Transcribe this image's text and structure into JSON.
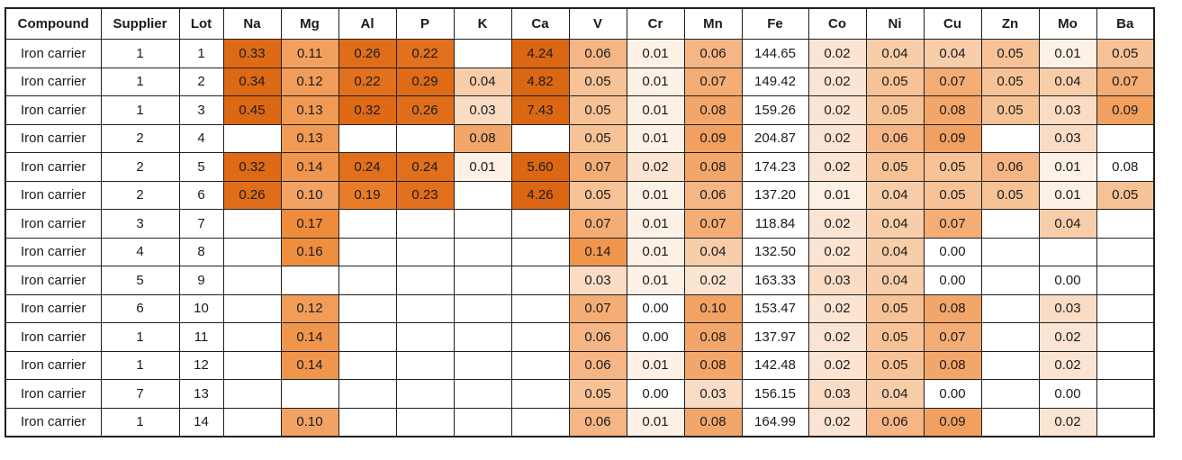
{
  "chart_data": {
    "type": "table",
    "title": "",
    "description": "Elemental composition heatmap table of iron carrier lots; cell shading encodes element concentration from white (low) to dark orange (high); Compound, Supplier, Lot and Fe columns are unshaded.",
    "columns": [
      "Compound",
      "Supplier",
      "Lot",
      "Na",
      "Mg",
      "Al",
      "P",
      "K",
      "Ca",
      "V",
      "Cr",
      "Mn",
      "Fe",
      "Co",
      "Ni",
      "Cu",
      "Zn",
      "Mo",
      "Ba"
    ],
    "rows": [
      [
        "Iron carrier",
        "1",
        "1",
        "0.33",
        "0.11",
        "0.26",
        "0.22",
        "",
        "4.24",
        "0.06",
        "0.01",
        "0.06",
        "144.65",
        "0.02",
        "0.04",
        "0.04",
        "0.05",
        "0.01",
        "0.05"
      ],
      [
        "Iron carrier",
        "1",
        "2",
        "0.34",
        "0.12",
        "0.22",
        "0.29",
        "0.04",
        "4.82",
        "0.05",
        "0.01",
        "0.07",
        "149.42",
        "0.02",
        "0.05",
        "0.07",
        "0.05",
        "0.04",
        "0.07"
      ],
      [
        "Iron carrier",
        "1",
        "3",
        "0.45",
        "0.13",
        "0.32",
        "0.26",
        "0.03",
        "7.43",
        "0.05",
        "0.01",
        "0.08",
        "159.26",
        "0.02",
        "0.05",
        "0.08",
        "0.05",
        "0.03",
        "0.09"
      ],
      [
        "Iron carrier",
        "2",
        "4",
        "",
        "0.13",
        "",
        "",
        "0.08",
        "",
        "0.05",
        "0.01",
        "0.09",
        "204.87",
        "0.02",
        "0.06",
        "0.09",
        "",
        "0.03",
        ""
      ],
      [
        "Iron carrier",
        "2",
        "5",
        "0.32",
        "0.14",
        "0.24",
        "0.24",
        "0.01",
        "5.60",
        "0.07",
        "0.02",
        "0.08",
        "174.23",
        "0.02",
        "0.05",
        "0.05",
        "0.06",
        "0.01",
        "0.08"
      ],
      [
        "Iron carrier",
        "2",
        "6",
        "0.26",
        "0.10",
        "0.19",
        "0.23",
        "",
        "4.26",
        "0.05",
        "0.01",
        "0.06",
        "137.20",
        "0.01",
        "0.04",
        "0.05",
        "0.05",
        "0.01",
        "0.05"
      ],
      [
        "Iron carrier",
        "3",
        "7",
        "",
        "0.17",
        "",
        "",
        "",
        "",
        "0.07",
        "0.01",
        "0.07",
        "118.84",
        "0.02",
        "0.04",
        "0.07",
        "",
        "0.04",
        ""
      ],
      [
        "Iron carrier",
        "4",
        "8",
        "",
        "0.16",
        "",
        "",
        "",
        "",
        "0.14",
        "0.01",
        "0.04",
        "132.50",
        "0.02",
        "0.04",
        "0.00",
        "",
        "",
        ""
      ],
      [
        "Iron carrier",
        "5",
        "9",
        "",
        "",
        "",
        "",
        "",
        "",
        "0.03",
        "0.01",
        "0.02",
        "163.33",
        "0.03",
        "0.04",
        "0.00",
        "",
        "0.00",
        ""
      ],
      [
        "Iron carrier",
        "6",
        "10",
        "",
        "0.12",
        "",
        "",
        "",
        "",
        "0.07",
        "0.00",
        "0.10",
        "153.47",
        "0.02",
        "0.05",
        "0.08",
        "",
        "0.03",
        ""
      ],
      [
        "Iron carrier",
        "1",
        "11",
        "",
        "0.14",
        "",
        "",
        "",
        "",
        "0.06",
        "0.00",
        "0.08",
        "137.97",
        "0.02",
        "0.05",
        "0.07",
        "",
        "0.02",
        ""
      ],
      [
        "Iron carrier",
        "1",
        "12",
        "",
        "0.14",
        "",
        "",
        "",
        "",
        "0.06",
        "0.01",
        "0.08",
        "142.48",
        "0.02",
        "0.05",
        "0.08",
        "",
        "0.02",
        ""
      ],
      [
        "Iron carrier",
        "7",
        "13",
        "",
        "",
        "",
        "",
        "",
        "",
        "0.05",
        "0.00",
        "0.03",
        "156.15",
        "0.03",
        "0.04",
        "0.00",
        "",
        "0.00",
        ""
      ],
      [
        "Iron carrier",
        "1",
        "14",
        "",
        "0.10",
        "",
        "",
        "",
        "",
        "0.06",
        "0.01",
        "0.08",
        "164.99",
        "0.02",
        "0.06",
        "0.09",
        "",
        "0.02",
        ""
      ]
    ],
    "heatmap": {
      "uncolored_columns": [
        "Compound",
        "Supplier",
        "Lot",
        "Fe"
      ],
      "default_cell_color": "#FFFFFF",
      "scale_min_color": "#FFFFFF",
      "scale_max_color": "#DC6712",
      "uncolored_cells": [
        {
          "row": 4,
          "column": "Ba"
        }
      ],
      "value_colors": {
        "0.00": "#FFFFFF",
        "0.01": "#FDF0E5",
        "0.02": "#FBE4D1",
        "0.03": "#FADCC5",
        "0.04": "#F8CDAA",
        "0.05": "#F6C296",
        "0.06": "#F5B584",
        "0.07": "#F4AD75",
        "0.08": "#F3A66A",
        "0.09": "#F2A05F",
        "0.10": "#F2A263",
        "0.11": "#F1A05E",
        "0.12": "#F19D59",
        "0.13": "#F09A53",
        "0.14": "#F0964C",
        "0.16": "#EE8F40",
        "0.17": "#EE8C3B",
        "0.19": "#E87C28",
        "0.22": "#E2701C",
        "0.23": "#E2701C",
        "0.24": "#E16F1B",
        "0.26": "#E06D19",
        "0.29": "#DF6B17",
        "0.32": "#DF6A16",
        "0.33": "#DE6A15",
        "0.34": "#DE6915",
        "0.45": "#DD6813",
        "4.24": "#DC6712",
        "4.26": "#DC6712",
        "4.82": "#DC6712",
        "5.60": "#DC6712",
        "7.43": "#DC6712"
      }
    }
  }
}
